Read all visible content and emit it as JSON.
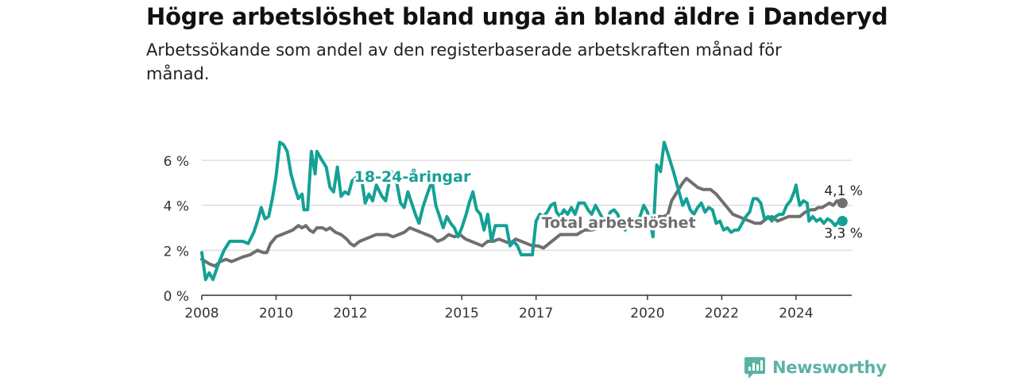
{
  "title": "Högre arbetslöshet bland unga än bland äldre i Danderyd",
  "subtitle": "Arbetssökande som andel av den registerbaserade arbetskraften månad för månad.",
  "brand": {
    "name": "Newsworthy",
    "color": "#5bb3a3"
  },
  "chart_data": {
    "type": "line",
    "title": "Högre arbetslöshet bland unga än bland äldre i Danderyd",
    "xlabel": "",
    "ylabel": "",
    "xlim": [
      2008,
      2025.5
    ],
    "ylim": [
      0,
      7.2
    ],
    "x_ticks": [
      2008,
      2010,
      2012,
      2015,
      2017,
      2020,
      2022,
      2024
    ],
    "y_ticks": [
      {
        "value": 0,
        "label": "0 %"
      },
      {
        "value": 2,
        "label": "2 %"
      },
      {
        "value": 4,
        "label": "4 %"
      },
      {
        "value": 6,
        "label": "6 %"
      }
    ],
    "grid": true,
    "series": [
      {
        "name": "18-24-åringar",
        "color": "#14a195",
        "end_label": "3,3 %",
        "points": [
          [
            2008.0,
            1.9
          ],
          [
            2008.1,
            0.7
          ],
          [
            2008.2,
            1.0
          ],
          [
            2008.3,
            0.7
          ],
          [
            2008.45,
            1.4
          ],
          [
            2008.6,
            2.0
          ],
          [
            2008.75,
            2.4
          ],
          [
            2008.95,
            2.4
          ],
          [
            2009.1,
            2.4
          ],
          [
            2009.25,
            2.3
          ],
          [
            2009.4,
            2.8
          ],
          [
            2009.5,
            3.3
          ],
          [
            2009.6,
            3.9
          ],
          [
            2009.7,
            3.4
          ],
          [
            2009.8,
            3.5
          ],
          [
            2009.9,
            4.3
          ],
          [
            2010.0,
            5.3
          ],
          [
            2010.1,
            6.8
          ],
          [
            2010.2,
            6.7
          ],
          [
            2010.3,
            6.4
          ],
          [
            2010.4,
            5.4
          ],
          [
            2010.5,
            4.8
          ],
          [
            2010.6,
            4.3
          ],
          [
            2010.7,
            4.5
          ],
          [
            2010.75,
            3.8
          ],
          [
            2010.85,
            3.8
          ],
          [
            2010.95,
            6.4
          ],
          [
            2011.05,
            5.4
          ],
          [
            2011.1,
            6.4
          ],
          [
            2011.2,
            6.1
          ],
          [
            2011.35,
            5.7
          ],
          [
            2011.45,
            4.8
          ],
          [
            2011.55,
            4.6
          ],
          [
            2011.65,
            5.7
          ],
          [
            2011.75,
            4.4
          ],
          [
            2011.85,
            4.6
          ],
          [
            2011.95,
            4.5
          ],
          [
            2012.05,
            5.1
          ],
          [
            2012.2,
            5.3
          ],
          [
            2012.3,
            5.2
          ],
          [
            2012.4,
            4.1
          ],
          [
            2012.5,
            4.5
          ],
          [
            2012.6,
            4.2
          ],
          [
            2012.7,
            4.9
          ],
          [
            2012.85,
            4.4
          ],
          [
            2012.95,
            4.2
          ],
          [
            2013.1,
            5.5
          ],
          [
            2013.25,
            5.0
          ],
          [
            2013.35,
            4.1
          ],
          [
            2013.45,
            3.9
          ],
          [
            2013.55,
            4.6
          ],
          [
            2013.65,
            4.1
          ],
          [
            2013.75,
            3.6
          ],
          [
            2013.85,
            3.2
          ],
          [
            2013.95,
            3.9
          ],
          [
            2014.05,
            4.4
          ],
          [
            2014.2,
            5.1
          ],
          [
            2014.3,
            4.0
          ],
          [
            2014.4,
            3.5
          ],
          [
            2014.5,
            3.0
          ],
          [
            2014.6,
            3.5
          ],
          [
            2014.7,
            3.2
          ],
          [
            2014.8,
            3.0
          ],
          [
            2014.9,
            2.6
          ],
          [
            2015.0,
            3.0
          ],
          [
            2015.1,
            3.5
          ],
          [
            2015.2,
            4.1
          ],
          [
            2015.3,
            4.6
          ],
          [
            2015.4,
            3.8
          ],
          [
            2015.5,
            3.6
          ],
          [
            2015.6,
            2.9
          ],
          [
            2015.7,
            3.6
          ],
          [
            2015.8,
            2.4
          ],
          [
            2015.9,
            3.1
          ],
          [
            2016.2,
            3.1
          ],
          [
            2016.3,
            2.2
          ],
          [
            2016.4,
            2.4
          ],
          [
            2016.5,
            2.2
          ],
          [
            2016.6,
            1.8
          ],
          [
            2016.9,
            1.8
          ],
          [
            2017.0,
            3.3
          ],
          [
            2017.1,
            3.6
          ],
          [
            2017.2,
            3.5
          ],
          [
            2017.3,
            3.7
          ],
          [
            2017.4,
            4.0
          ],
          [
            2017.5,
            4.1
          ],
          [
            2017.55,
            3.7
          ],
          [
            2017.65,
            3.5
          ],
          [
            2017.75,
            3.8
          ],
          [
            2017.85,
            3.6
          ],
          [
            2017.95,
            3.9
          ],
          [
            2018.05,
            3.6
          ],
          [
            2018.15,
            4.1
          ],
          [
            2018.3,
            4.1
          ],
          [
            2018.4,
            3.8
          ],
          [
            2018.5,
            3.6
          ],
          [
            2018.6,
            4.0
          ],
          [
            2018.7,
            3.7
          ],
          [
            2018.8,
            3.4
          ],
          [
            2018.9,
            3.3
          ],
          [
            2019.0,
            3.7
          ],
          [
            2019.1,
            3.8
          ],
          [
            2019.2,
            3.6
          ],
          [
            2019.3,
            3.1
          ],
          [
            2019.4,
            2.9
          ],
          [
            2019.5,
            3.3
          ],
          [
            2019.6,
            3.0
          ],
          [
            2019.7,
            3.3
          ],
          [
            2019.8,
            3.5
          ],
          [
            2019.9,
            4.0
          ],
          [
            2020.0,
            3.7
          ],
          [
            2020.1,
            3.0
          ],
          [
            2020.15,
            2.6
          ],
          [
            2020.25,
            5.8
          ],
          [
            2020.35,
            5.5
          ],
          [
            2020.45,
            6.8
          ],
          [
            2020.55,
            6.3
          ],
          [
            2020.7,
            5.5
          ],
          [
            2020.85,
            4.6
          ],
          [
            2020.95,
            4.0
          ],
          [
            2021.05,
            4.3
          ],
          [
            2021.15,
            3.8
          ],
          [
            2021.25,
            3.6
          ],
          [
            2021.35,
            3.9
          ],
          [
            2021.45,
            4.1
          ],
          [
            2021.55,
            3.7
          ],
          [
            2021.65,
            3.9
          ],
          [
            2021.75,
            3.8
          ],
          [
            2021.85,
            3.2
          ],
          [
            2021.95,
            3.3
          ],
          [
            2022.05,
            2.9
          ],
          [
            2022.15,
            3.0
          ],
          [
            2022.25,
            2.8
          ],
          [
            2022.35,
            2.9
          ],
          [
            2022.45,
            2.9
          ],
          [
            2022.55,
            3.2
          ],
          [
            2022.65,
            3.5
          ],
          [
            2022.75,
            3.7
          ],
          [
            2022.85,
            4.3
          ],
          [
            2022.95,
            4.3
          ],
          [
            2023.05,
            4.1
          ],
          [
            2023.15,
            3.4
          ],
          [
            2023.25,
            3.5
          ],
          [
            2023.35,
            3.3
          ],
          [
            2023.45,
            3.5
          ],
          [
            2023.55,
            3.6
          ],
          [
            2023.65,
            3.6
          ],
          [
            2023.75,
            4.0
          ],
          [
            2023.85,
            4.2
          ],
          [
            2023.95,
            4.6
          ],
          [
            2024.0,
            4.9
          ],
          [
            2024.05,
            4.4
          ],
          [
            2024.1,
            4.0
          ],
          [
            2024.2,
            4.2
          ],
          [
            2024.3,
            4.1
          ],
          [
            2024.35,
            3.3
          ],
          [
            2024.45,
            3.5
          ],
          [
            2024.55,
            3.3
          ],
          [
            2024.65,
            3.4
          ],
          [
            2024.75,
            3.2
          ],
          [
            2024.85,
            3.4
          ],
          [
            2024.95,
            3.3
          ],
          [
            2025.05,
            3.1
          ],
          [
            2025.15,
            3.3
          ],
          [
            2025.25,
            3.3
          ]
        ]
      },
      {
        "name": "Total arbetslöshet",
        "color": "#6f6f6f",
        "end_label": "4,1 %",
        "points": [
          [
            2008.0,
            1.6
          ],
          [
            2008.2,
            1.4
          ],
          [
            2008.35,
            1.3
          ],
          [
            2008.5,
            1.5
          ],
          [
            2008.65,
            1.6
          ],
          [
            2008.8,
            1.5
          ],
          [
            2008.95,
            1.6
          ],
          [
            2009.1,
            1.7
          ],
          [
            2009.3,
            1.8
          ],
          [
            2009.5,
            2.0
          ],
          [
            2009.65,
            1.9
          ],
          [
            2009.75,
            1.9
          ],
          [
            2009.85,
            2.3
          ],
          [
            2010.0,
            2.6
          ],
          [
            2010.15,
            2.7
          ],
          [
            2010.3,
            2.8
          ],
          [
            2010.45,
            2.9
          ],
          [
            2010.6,
            3.1
          ],
          [
            2010.7,
            3.0
          ],
          [
            2010.8,
            3.1
          ],
          [
            2010.9,
            2.9
          ],
          [
            2011.0,
            2.8
          ],
          [
            2011.1,
            3.0
          ],
          [
            2011.25,
            3.0
          ],
          [
            2011.35,
            2.9
          ],
          [
            2011.45,
            3.0
          ],
          [
            2011.6,
            2.8
          ],
          [
            2011.75,
            2.7
          ],
          [
            2011.9,
            2.5
          ],
          [
            2012.0,
            2.3
          ],
          [
            2012.1,
            2.2
          ],
          [
            2012.25,
            2.4
          ],
          [
            2012.4,
            2.5
          ],
          [
            2012.55,
            2.6
          ],
          [
            2012.7,
            2.7
          ],
          [
            2012.85,
            2.7
          ],
          [
            2013.0,
            2.7
          ],
          [
            2013.15,
            2.6
          ],
          [
            2013.3,
            2.7
          ],
          [
            2013.45,
            2.8
          ],
          [
            2013.6,
            3.0
          ],
          [
            2013.75,
            2.9
          ],
          [
            2013.9,
            2.8
          ],
          [
            2014.05,
            2.7
          ],
          [
            2014.2,
            2.6
          ],
          [
            2014.35,
            2.4
          ],
          [
            2014.5,
            2.5
          ],
          [
            2014.65,
            2.7
          ],
          [
            2014.8,
            2.6
          ],
          [
            2014.95,
            2.7
          ],
          [
            2015.1,
            2.5
          ],
          [
            2015.25,
            2.4
          ],
          [
            2015.4,
            2.3
          ],
          [
            2015.55,
            2.2
          ],
          [
            2015.7,
            2.4
          ],
          [
            2015.85,
            2.4
          ],
          [
            2016.0,
            2.5
          ],
          [
            2016.15,
            2.4
          ],
          [
            2016.3,
            2.3
          ],
          [
            2016.45,
            2.5
          ],
          [
            2016.6,
            2.4
          ],
          [
            2016.75,
            2.3
          ],
          [
            2016.9,
            2.2
          ],
          [
            2017.05,
            2.2
          ],
          [
            2017.2,
            2.1
          ],
          [
            2017.35,
            2.3
          ],
          [
            2017.5,
            2.5
          ],
          [
            2017.65,
            2.7
          ],
          [
            2017.8,
            2.7
          ],
          [
            2017.95,
            2.7
          ],
          [
            2018.1,
            2.7
          ],
          [
            2018.3,
            2.9
          ],
          [
            2018.5,
            2.9
          ],
          [
            2018.7,
            3.0
          ],
          [
            2018.9,
            3.1
          ],
          [
            2019.1,
            3.1
          ],
          [
            2019.3,
            3.2
          ],
          [
            2019.5,
            3.3
          ],
          [
            2019.7,
            3.3
          ],
          [
            2019.9,
            3.3
          ],
          [
            2020.1,
            3.4
          ],
          [
            2020.3,
            3.5
          ],
          [
            2020.45,
            3.5
          ],
          [
            2020.55,
            3.6
          ],
          [
            2020.65,
            4.2
          ],
          [
            2020.8,
            4.6
          ],
          [
            2020.95,
            5.0
          ],
          [
            2021.05,
            5.2
          ],
          [
            2021.2,
            5.0
          ],
          [
            2021.35,
            4.8
          ],
          [
            2021.5,
            4.7
          ],
          [
            2021.7,
            4.7
          ],
          [
            2021.85,
            4.5
          ],
          [
            2022.0,
            4.2
          ],
          [
            2022.15,
            3.9
          ],
          [
            2022.3,
            3.6
          ],
          [
            2022.45,
            3.5
          ],
          [
            2022.6,
            3.4
          ],
          [
            2022.75,
            3.3
          ],
          [
            2022.9,
            3.2
          ],
          [
            2023.05,
            3.2
          ],
          [
            2023.2,
            3.4
          ],
          [
            2023.35,
            3.5
          ],
          [
            2023.5,
            3.3
          ],
          [
            2023.65,
            3.4
          ],
          [
            2023.8,
            3.5
          ],
          [
            2023.95,
            3.5
          ],
          [
            2024.1,
            3.5
          ],
          [
            2024.25,
            3.7
          ],
          [
            2024.4,
            3.8
          ],
          [
            2024.5,
            3.8
          ],
          [
            2024.6,
            3.9
          ],
          [
            2024.7,
            3.9
          ],
          [
            2024.8,
            4.0
          ],
          [
            2024.9,
            4.1
          ],
          [
            2025.0,
            4.0
          ],
          [
            2025.1,
            4.2
          ],
          [
            2025.25,
            4.1
          ]
        ]
      }
    ],
    "annotations": [
      {
        "text": "18-24-åringar",
        "series": 0
      },
      {
        "text": "Total arbetslöshet",
        "series": 1
      }
    ]
  }
}
